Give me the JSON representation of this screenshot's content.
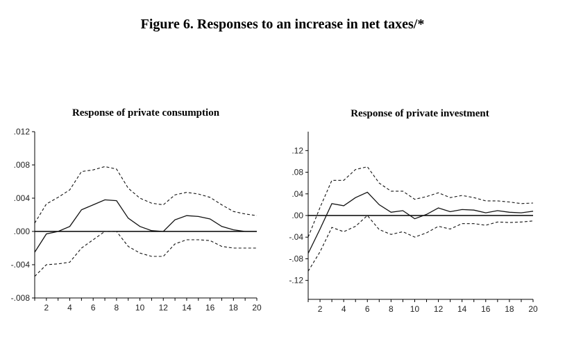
{
  "figure_title": "Figure 6. Responses to an increase in net taxes/*",
  "chart_data": [
    {
      "type": "line",
      "title": "Response of private consumption",
      "xlabel": "",
      "ylabel": "",
      "x": [
        1,
        2,
        3,
        4,
        5,
        6,
        7,
        8,
        9,
        10,
        11,
        12,
        13,
        14,
        15,
        16,
        17,
        18,
        19,
        20
      ],
      "xticks": [
        2,
        4,
        6,
        8,
        10,
        12,
        14,
        16,
        18,
        20
      ],
      "xtick_labels": [
        "2",
        "4",
        "6",
        "8",
        "10",
        "12",
        "14",
        "16",
        "18",
        "20"
      ],
      "ylim": [
        -0.008,
        0.012
      ],
      "yticks": [
        -0.008,
        -0.004,
        0.0,
        0.004,
        0.008,
        0.012
      ],
      "ytick_labels": [
        "-.008",
        "-.004",
        ".000",
        ".004",
        ".008",
        ".012"
      ],
      "zero_line": true,
      "series": [
        {
          "name": "Upper band",
          "style": "dashed",
          "values": [
            0.001,
            0.0033,
            0.0041,
            0.005,
            0.0072,
            0.0074,
            0.0078,
            0.0075,
            0.0052,
            0.004,
            0.0034,
            0.0032,
            0.0044,
            0.0047,
            0.0045,
            0.0041,
            0.0032,
            0.0024,
            0.0021,
            0.0019
          ]
        },
        {
          "name": "Response",
          "style": "solid",
          "values": [
            -0.0025,
            -0.0003,
            0.0,
            0.0006,
            0.0026,
            0.0032,
            0.0038,
            0.0037,
            0.0016,
            0.0006,
            0.0001,
            0.0,
            0.0014,
            0.0019,
            0.0018,
            0.0015,
            0.0006,
            0.0002,
            0.0,
            0.0
          ]
        },
        {
          "name": "Lower band",
          "style": "dashed",
          "values": [
            -0.0054,
            -0.004,
            -0.0039,
            -0.0037,
            -0.002,
            -0.001,
            0.0,
            0.0,
            -0.0018,
            -0.0026,
            -0.003,
            -0.003,
            -0.0015,
            -0.001,
            -0.001,
            -0.0011,
            -0.0018,
            -0.002,
            -0.002,
            -0.002
          ]
        }
      ]
    },
    {
      "type": "line",
      "title": "Response of private investment",
      "xlabel": "",
      "ylabel": "",
      "x": [
        1,
        2,
        3,
        4,
        5,
        6,
        7,
        8,
        9,
        10,
        11,
        12,
        13,
        14,
        15,
        16,
        17,
        18,
        19,
        20
      ],
      "xticks": [
        2,
        4,
        6,
        8,
        10,
        12,
        14,
        16,
        18,
        20
      ],
      "xtick_labels": [
        "2",
        "4",
        "6",
        "8",
        "10",
        "12",
        "14",
        "16",
        "18",
        "20"
      ],
      "ylim": [
        -0.155,
        0.155
      ],
      "yticks": [
        -0.12,
        -0.08,
        -0.04,
        0.0,
        0.04,
        0.08,
        0.12
      ],
      "ytick_labels": [
        "-.12",
        "-.08",
        "-.04",
        ".00",
        ".04",
        ".08",
        ".12"
      ],
      "zero_line": true,
      "series": [
        {
          "name": "Upper band",
          "style": "dashed",
          "values": [
            -0.04,
            0.015,
            0.065,
            0.065,
            0.085,
            0.09,
            0.06,
            0.045,
            0.045,
            0.03,
            0.035,
            0.042,
            0.033,
            0.037,
            0.033,
            0.027,
            0.027,
            0.025,
            0.022,
            0.023
          ]
        },
        {
          "name": "Response",
          "style": "solid",
          "values": [
            -0.07,
            -0.025,
            0.022,
            0.018,
            0.033,
            0.043,
            0.02,
            0.006,
            0.009,
            -0.006,
            0.002,
            0.014,
            0.007,
            0.011,
            0.01,
            0.005,
            0.009,
            0.006,
            0.005,
            0.008
          ]
        },
        {
          "name": "Lower band",
          "style": "dashed",
          "values": [
            -0.103,
            -0.067,
            -0.022,
            -0.03,
            -0.02,
            0.0,
            -0.026,
            -0.035,
            -0.03,
            -0.04,
            -0.032,
            -0.02,
            -0.025,
            -0.015,
            -0.015,
            -0.018,
            -0.012,
            -0.013,
            -0.012,
            -0.01
          ]
        }
      ]
    }
  ]
}
